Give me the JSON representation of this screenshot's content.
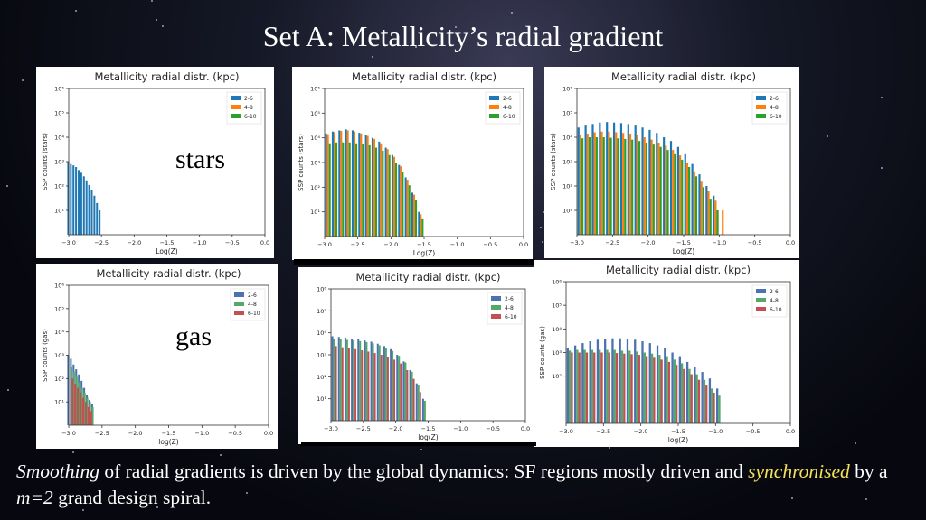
{
  "slide": {
    "title": "Set A: Metallicity’s radial gradient",
    "label_stars": "stars",
    "label_gas": "gas",
    "caption": {
      "part1_em": "Smoothing",
      "part2": " of radial gradients is driven  by the global dynamics: SF regions mostly driven and ",
      "part3_em": "synchronised",
      "part4": " by a ",
      "part5_em": "m=2",
      "part6": "  grand design spiral."
    }
  },
  "chart_data": [
    {
      "type": "bar",
      "title": "Metallicity radial distr. (kpc)",
      "xlabel": "Log(Z)",
      "ylabel": "SSP counts (stars)",
      "xlim": [
        -3.0,
        0.0
      ],
      "yscale": "log",
      "ylim": [
        1,
        1000000
      ],
      "xticks": [
        "−3.0",
        "−2.5",
        "−2.0",
        "−1.5",
        "−1.0",
        "−0.5",
        "0.0"
      ],
      "yticks": [
        "10¹",
        "10²",
        "10³",
        "10⁴",
        "10⁵",
        "10⁶"
      ],
      "legend": "top-right",
      "series": [
        {
          "name": "2-6",
          "color": "#1f77b4",
          "x": [
            -2.98,
            -2.94,
            -2.9,
            -2.86,
            -2.82,
            -2.78,
            -2.74,
            -2.7,
            -2.66,
            -2.62,
            -2.58,
            -2.54,
            -2.5
          ],
          "values": [
            1000,
            800,
            700,
            600,
            450,
            350,
            250,
            170,
            110,
            70,
            40,
            20,
            10
          ]
        },
        {
          "name": "4-8",
          "color": "#ff7f0e",
          "x": [],
          "values": []
        },
        {
          "name": "6-10",
          "color": "#2ca02c",
          "x": [],
          "values": []
        }
      ]
    },
    {
      "type": "bar",
      "title": "Metallicity radial distr. (kpc)",
      "xlabel": "Log(Z)",
      "ylabel": "SSP counts (stars)",
      "xlim": [
        -3.0,
        0.0
      ],
      "yscale": "log",
      "ylim": [
        1,
        1000000
      ],
      "xticks": [
        "−3.0",
        "−2.5",
        "−2.0",
        "−1.5",
        "−1.0",
        "−0.5",
        "0.0"
      ],
      "yticks": [
        "10¹",
        "10²",
        "10³",
        "10⁴",
        "10⁵",
        "10⁶"
      ],
      "legend": "top-right",
      "series": [
        {
          "name": "2-6",
          "color": "#1f77b4",
          "x": [
            -2.95,
            -2.85,
            -2.75,
            -2.65,
            -2.55,
            -2.45,
            -2.35,
            -2.25,
            -2.15,
            -2.05,
            -1.95,
            -1.85,
            -1.75,
            -1.65,
            -1.55
          ],
          "values": [
            15000,
            18000,
            20000,
            22000,
            20000,
            16000,
            13000,
            10000,
            7000,
            4000,
            2000,
            800,
            250,
            60,
            10
          ]
        },
        {
          "name": "4-8",
          "color": "#ff7f0e",
          "x": [
            -2.95,
            -2.85,
            -2.75,
            -2.65,
            -2.55,
            -2.45,
            -2.35,
            -2.25,
            -2.15,
            -2.05,
            -1.95,
            -1.85,
            -1.75,
            -1.65,
            -1.55
          ],
          "values": [
            14000,
            17000,
            19000,
            20000,
            18000,
            15000,
            12000,
            9000,
            6000,
            3500,
            1700,
            700,
            200,
            50,
            8
          ]
        },
        {
          "name": "6-10",
          "color": "#2ca02c",
          "x": [
            -2.95,
            -2.85,
            -2.75,
            -2.65,
            -2.55,
            -2.45,
            -2.35,
            -2.25,
            -2.15,
            -2.05,
            -1.95,
            -1.85,
            -1.75,
            -1.65,
            -1.55
          ],
          "values": [
            6000,
            6500,
            6500,
            6500,
            6000,
            5500,
            5000,
            4000,
            3000,
            2000,
            1000,
            400,
            120,
            30,
            5
          ]
        }
      ]
    },
    {
      "type": "bar",
      "title": "Metallicity radial distr. (kpc)",
      "xlabel": "Log(Z)",
      "ylabel": "SSP counts (stars)",
      "xlim": [
        -3.0,
        0.0
      ],
      "yscale": "log",
      "ylim": [
        1,
        1000000
      ],
      "xticks": [
        "−3.0",
        "−2.5",
        "−2.0",
        "−1.5",
        "−1.0",
        "−0.5",
        "0.0"
      ],
      "yticks": [
        "10¹",
        "10²",
        "10³",
        "10⁴",
        "10⁵",
        "10⁶"
      ],
      "legend": "top-right",
      "series": [
        {
          "name": "2-6",
          "color": "#1f77b4",
          "x": [
            -2.95,
            -2.85,
            -2.75,
            -2.65,
            -2.55,
            -2.45,
            -2.35,
            -2.25,
            -2.15,
            -2.05,
            -1.95,
            -1.85,
            -1.75,
            -1.65,
            -1.55,
            -1.45,
            -1.35,
            -1.25,
            -1.15,
            -1.05
          ],
          "values": [
            25000,
            30000,
            35000,
            40000,
            42000,
            40000,
            38000,
            35000,
            30000,
            25000,
            20000,
            15000,
            10000,
            7000,
            4000,
            2000,
            800,
            300,
            100,
            40
          ]
        },
        {
          "name": "4-8",
          "color": "#ff7f0e",
          "x": [
            -2.95,
            -2.85,
            -2.75,
            -2.65,
            -2.55,
            -2.45,
            -2.35,
            -2.25,
            -2.15,
            -2.05,
            -1.95,
            -1.85,
            -1.75,
            -1.65,
            -1.55,
            -1.45,
            -1.35,
            -1.25,
            -1.15,
            -1.05,
            -0.95
          ],
          "values": [
            12000,
            14000,
            16000,
            17000,
            17000,
            16000,
            15000,
            14000,
            12000,
            10000,
            8000,
            6000,
            4500,
            3000,
            1800,
            900,
            400,
            150,
            60,
            25,
            10
          ]
        },
        {
          "name": "6-10",
          "color": "#2ca02c",
          "x": [
            -2.95,
            -2.85,
            -2.75,
            -2.65,
            -2.55,
            -2.45,
            -2.35,
            -2.25,
            -2.15,
            -2.05,
            -1.95,
            -1.85,
            -1.75,
            -1.65,
            -1.55,
            -1.45,
            -1.35,
            -1.25,
            -1.15,
            -1.05
          ],
          "values": [
            9000,
            10000,
            10000,
            10000,
            9500,
            9000,
            8500,
            8000,
            7000,
            6000,
            5000,
            4000,
            3000,
            2000,
            1200,
            600,
            250,
            90,
            30,
            10
          ]
        }
      ]
    },
    {
      "type": "bar",
      "title": "Metallicity radial distr. (kpc)",
      "xlabel": "log(Z)",
      "ylabel": "SSP counts (gas)",
      "xlim": [
        -3.0,
        0.0
      ],
      "yscale": "log",
      "ylim": [
        1,
        1000000
      ],
      "xticks": [
        "−3.0",
        "−2.5",
        "−2.0",
        "−1.5",
        "−1.0",
        "−0.5",
        "0.0"
      ],
      "yticks": [
        "10¹",
        "10²",
        "10³",
        "10⁴",
        "10⁵",
        "10⁶"
      ],
      "legend": "top-right",
      "series": [
        {
          "name": "2-6",
          "color": "#4c72b0",
          "x": [
            -2.98,
            -2.94,
            -2.9,
            -2.86,
            -2.82,
            -2.78,
            -2.74,
            -2.7,
            -2.66,
            -2.62
          ],
          "values": [
            1000,
            700,
            400,
            250,
            150,
            80,
            40,
            20,
            12,
            8
          ]
        },
        {
          "name": "4-8",
          "color": "#55a868",
          "x": [
            -2.96,
            -2.92,
            -2.88,
            -2.84,
            -2.8,
            -2.76,
            -2.72,
            -2.68,
            -2.64
          ],
          "values": [
            300,
            200,
            120,
            70,
            40,
            25,
            15,
            10,
            6
          ]
        },
        {
          "name": "6-10",
          "color": "#c44e52",
          "x": [
            -2.97,
            -2.93,
            -2.89,
            -2.85,
            -2.81,
            -2.77,
            -2.73,
            -2.69
          ],
          "values": [
            100,
            60,
            40,
            25,
            15,
            10,
            6,
            4
          ]
        }
      ]
    },
    {
      "type": "bar",
      "title": "Metallicity radial distr. (kpc)",
      "xlabel": "log(Z)",
      "ylabel": "",
      "xlim": [
        -3.0,
        0.0
      ],
      "yscale": "log",
      "ylim": [
        1,
        1000000
      ],
      "xticks": [
        "−3.0",
        "−2.5",
        "−2.0",
        "−1.5",
        "−1.0",
        "−0.5",
        "0.0"
      ],
      "yticks": [
        "10¹",
        "10²",
        "10³",
        "10⁴",
        "10⁵",
        "10⁶"
      ],
      "legend": "top-right",
      "series": [
        {
          "name": "2-6",
          "color": "#4c72b0",
          "x": [
            -2.95,
            -2.85,
            -2.75,
            -2.65,
            -2.55,
            -2.45,
            -2.35,
            -2.25,
            -2.15,
            -2.05,
            -1.95,
            -1.85,
            -1.75,
            -1.65,
            -1.55
          ],
          "values": [
            7000,
            6500,
            6000,
            5500,
            5000,
            4500,
            4000,
            3200,
            2500,
            1800,
            1000,
            500,
            200,
            50,
            10
          ]
        },
        {
          "name": "4-8",
          "color": "#55a868",
          "x": [
            -2.95,
            -2.85,
            -2.75,
            -2.65,
            -2.55,
            -2.45,
            -2.35,
            -2.25,
            -2.15,
            -2.05,
            -1.95,
            -1.85,
            -1.75,
            -1.65,
            -1.55
          ],
          "values": [
            5000,
            5000,
            4800,
            4500,
            4200,
            3800,
            3300,
            2700,
            2100,
            1500,
            900,
            450,
            170,
            40,
            8
          ]
        },
        {
          "name": "6-10",
          "color": "#c44e52",
          "x": [
            -2.95,
            -2.85,
            -2.75,
            -2.65,
            -2.55,
            -2.45,
            -2.35,
            -2.25,
            -2.15,
            -2.05,
            -1.95,
            -1.85,
            -1.75,
            -1.65
          ],
          "values": [
            2500,
            2200,
            2000,
            1800,
            1600,
            1400,
            1200,
            1000,
            800,
            600,
            400,
            200,
            80,
            20
          ]
        }
      ]
    },
    {
      "type": "bar",
      "title": "Metallicity radial distr. (kpc)",
      "xlabel": "log(Z)",
      "ylabel": "SSP counts (gas)",
      "xlim": [
        -3.0,
        0.0
      ],
      "yscale": "log",
      "ylim": [
        1,
        1000000
      ],
      "xticks": [
        "−3.0",
        "−2.5",
        "−2.0",
        "−1.5",
        "−1.0",
        "−0.5",
        "0.0"
      ],
      "yticks": [
        "10²",
        "10³",
        "10⁴",
        "10⁵",
        "10⁶"
      ],
      "legend": "top-right",
      "series": [
        {
          "name": "2-6",
          "color": "#4c72b0",
          "x": [
            -2.95,
            -2.85,
            -2.75,
            -2.65,
            -2.55,
            -2.45,
            -2.35,
            -2.25,
            -2.15,
            -2.05,
            -1.95,
            -1.85,
            -1.75,
            -1.65,
            -1.55,
            -1.45,
            -1.35,
            -1.25,
            -1.15,
            -1.05,
            -0.95
          ],
          "values": [
            1500,
            2000,
            2500,
            3000,
            3500,
            3800,
            4000,
            4000,
            3800,
            3500,
            3000,
            2500,
            2000,
            1500,
            1000,
            700,
            400,
            250,
            150,
            80,
            30
          ]
        },
        {
          "name": "4-8",
          "color": "#55a868",
          "x": [
            -2.95,
            -2.85,
            -2.75,
            -2.65,
            -2.55,
            -2.45,
            -2.35,
            -2.25,
            -2.15,
            -2.05,
            -1.95,
            -1.85,
            -1.75,
            -1.65,
            -1.55,
            -1.45,
            -1.35,
            -1.25,
            -1.15,
            -1.05,
            -0.95
          ],
          "values": [
            1200,
            1300,
            1300,
            1300,
            1300,
            1300,
            1300,
            1200,
            1200,
            1100,
            1000,
            900,
            800,
            700,
            500,
            350,
            200,
            120,
            70,
            30,
            15
          ]
        },
        {
          "name": "6-10",
          "color": "#c44e52",
          "x": [
            -2.95,
            -2.85,
            -2.75,
            -2.65,
            -2.55,
            -2.45,
            -2.35,
            -2.25,
            -2.15,
            -2.05,
            -1.95,
            -1.85,
            -1.75,
            -1.65,
            -1.55,
            -1.45,
            -1.35,
            -1.25,
            -1.15,
            -1.05
          ],
          "values": [
            1000,
            1000,
            1000,
            1000,
            1000,
            1000,
            950,
            900,
            850,
            800,
            700,
            600,
            500,
            400,
            300,
            200,
            120,
            70,
            40,
            20
          ]
        }
      ]
    }
  ]
}
